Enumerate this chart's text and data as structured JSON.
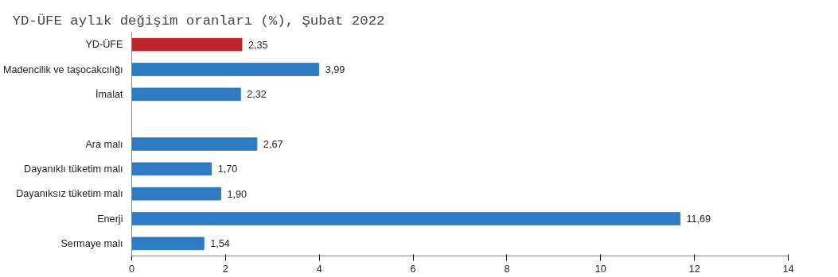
{
  "chart_data": {
    "type": "bar",
    "orientation": "horizontal",
    "title": "YD-ÜFE aylık değişim oranları (%), Şubat 2022",
    "categories": [
      "YD-ÜFE",
      "Madencilik ve taşocakcılığı",
      "İmalat",
      null,
      "Ara malı",
      "Dayanıklı tüketim malı",
      "Dayanıksız tüketim malı",
      "Enerji",
      "Sermaye malı"
    ],
    "values": [
      2.35,
      3.99,
      2.32,
      null,
      2.67,
      1.7,
      1.9,
      11.69,
      1.54
    ],
    "colors": [
      "#c0272d",
      "#2e7bc4",
      "#2e7bc4",
      null,
      "#2e7bc4",
      "#2e7bc4",
      "#2e7bc4",
      "#2e7bc4",
      "#2e7bc4"
    ],
    "value_labels": [
      "2,35",
      "3,99",
      "2,32",
      null,
      "2,67",
      "1,70",
      "1,90",
      "11,69",
      "1,54"
    ],
    "xlim": [
      0,
      14
    ],
    "xticks": [
      0,
      2,
      4,
      6,
      8,
      10,
      12,
      14
    ],
    "grid": false
  }
}
